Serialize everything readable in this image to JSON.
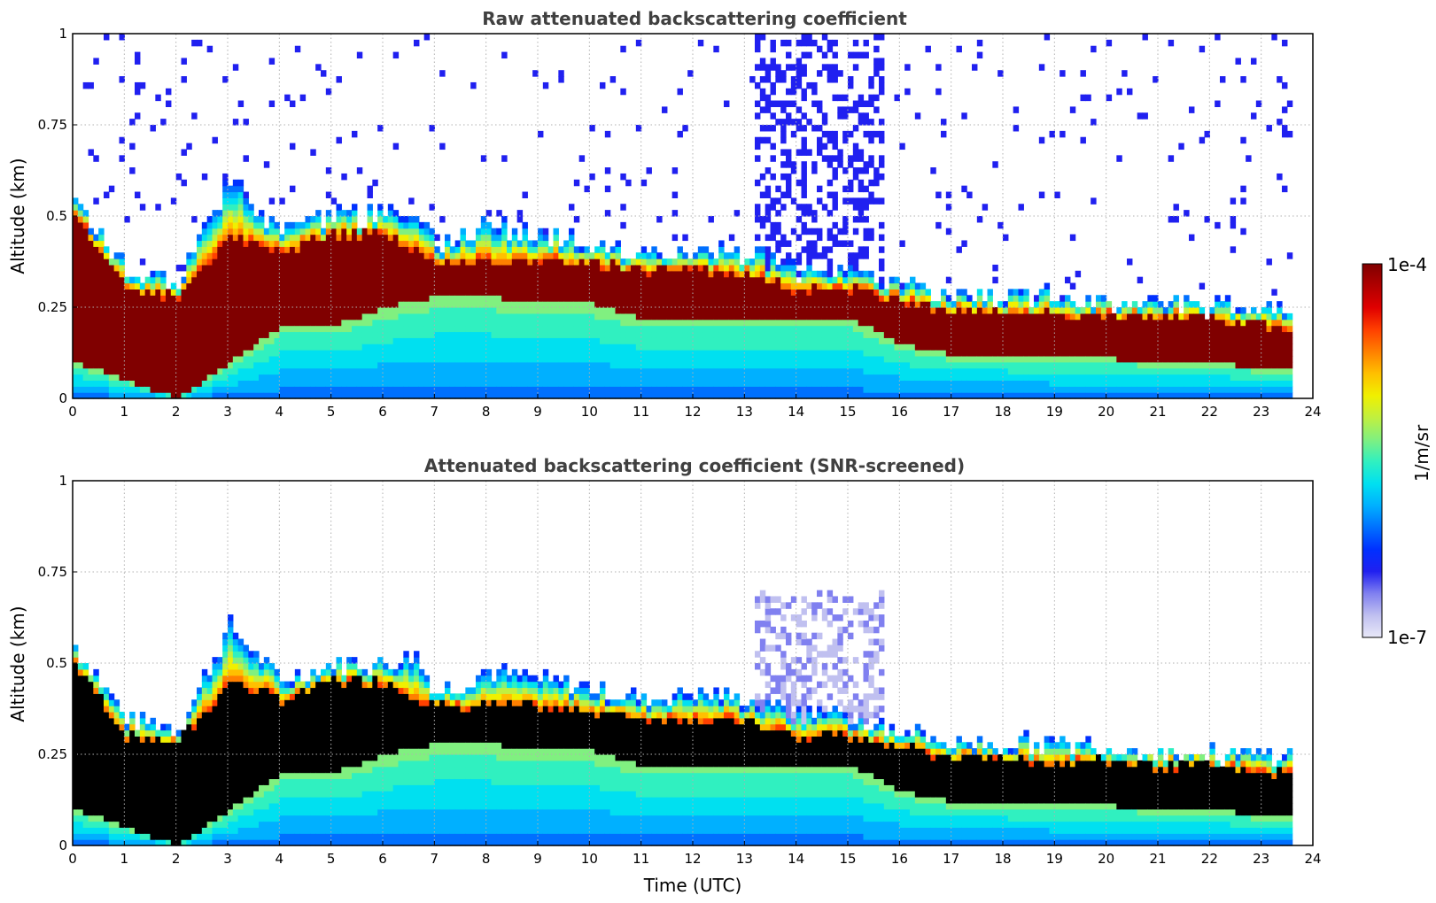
{
  "chart_data": [
    {
      "type": "heatmap",
      "title": "Raw attenuated backscattering coefficient",
      "xlabel": "",
      "ylabel": "Altitude (km)",
      "xlim": [
        0,
        24
      ],
      "ylim": [
        0,
        1
      ],
      "xticks": [
        "0",
        "1",
        "2",
        "3",
        "4",
        "5",
        "6",
        "7",
        "8",
        "9",
        "10",
        "11",
        "12",
        "13",
        "14",
        "15",
        "16",
        "17",
        "18",
        "19",
        "20",
        "21",
        "22",
        "23",
        "24"
      ],
      "yticks": [
        "0",
        "0.25",
        "0.5",
        "0.75",
        "1"
      ],
      "grid": true,
      "data_end_time": 23.6,
      "features": {
        "boundary_layer_top_km": [
          [
            0,
            0.55
          ],
          [
            1,
            0.35
          ],
          [
            2,
            0.32
          ],
          [
            3,
            0.6
          ],
          [
            4,
            0.45
          ],
          [
            5,
            0.5
          ],
          [
            6,
            0.5
          ],
          [
            6.6,
            0.52
          ],
          [
            7,
            0.42
          ],
          [
            8,
            0.48
          ],
          [
            9,
            0.45
          ],
          [
            10,
            0.43
          ],
          [
            11,
            0.4
          ],
          [
            12,
            0.42
          ],
          [
            13,
            0.4
          ],
          [
            14,
            0.35
          ],
          [
            15,
            0.35
          ],
          [
            16,
            0.32
          ],
          [
            17,
            0.28
          ],
          [
            18,
            0.28
          ],
          [
            19,
            0.28
          ],
          [
            20,
            0.27
          ],
          [
            21,
            0.26
          ],
          [
            22,
            0.25
          ],
          [
            23,
            0.25
          ],
          [
            23.6,
            0.25
          ]
        ],
        "saturated_layer_km": [
          [
            0,
            0.1,
            0.5
          ],
          [
            1,
            0.05,
            0.3
          ],
          [
            2,
            0.0,
            0.28
          ],
          [
            3,
            0.1,
            0.45
          ],
          [
            4,
            0.2,
            0.4
          ],
          [
            5,
            0.2,
            0.45
          ],
          [
            6,
            0.25,
            0.45
          ],
          [
            7,
            0.28,
            0.38
          ],
          [
            8,
            0.28,
            0.38
          ],
          [
            9,
            0.26,
            0.38
          ],
          [
            10,
            0.26,
            0.37
          ],
          [
            11,
            0.22,
            0.35
          ],
          [
            12,
            0.22,
            0.35
          ],
          [
            13,
            0.22,
            0.34
          ],
          [
            14,
            0.22,
            0.3
          ],
          [
            15,
            0.22,
            0.3
          ],
          [
            16,
            0.15,
            0.27
          ],
          [
            17,
            0.12,
            0.24
          ],
          [
            18,
            0.12,
            0.24
          ],
          [
            19,
            0.11,
            0.23
          ],
          [
            20,
            0.11,
            0.23
          ],
          [
            21,
            0.1,
            0.22
          ],
          [
            22,
            0.1,
            0.22
          ],
          [
            23,
            0.08,
            0.2
          ],
          [
            23.6,
            0.08,
            0.2
          ]
        ],
        "precip_noise_interval_utc": [
          13.2,
          15.7
        ]
      }
    },
    {
      "type": "heatmap",
      "title": "Attenuated backscattering coefficient (SNR-screened)",
      "xlabel": "Time (UTC)",
      "ylabel": "Altitude (km)",
      "xlim": [
        0,
        24
      ],
      "ylim": [
        0,
        1
      ],
      "xticks": [
        "0",
        "1",
        "2",
        "3",
        "4",
        "5",
        "6",
        "7",
        "8",
        "9",
        "10",
        "11",
        "12",
        "13",
        "14",
        "15",
        "16",
        "17",
        "18",
        "19",
        "20",
        "21",
        "22",
        "23",
        "24"
      ],
      "yticks": [
        "0",
        "0.25",
        "0.5",
        "0.75",
        "1"
      ],
      "grid": true,
      "data_end_time": 23.6
    }
  ],
  "colorbar": {
    "label": "1/m/sr",
    "max_label": "1e-4",
    "min_label": "1e-7",
    "colors": [
      "#e8e8f8",
      "#c0c0f0",
      "#8080f0",
      "#2020f0",
      "#0030ff",
      "#0070ff",
      "#00b0ff",
      "#00e0f0",
      "#30f0c0",
      "#80f080",
      "#c0f040",
      "#f0f000",
      "#ffc000",
      "#ff8000",
      "#ff4000",
      "#e00000",
      "#b00000",
      "#800000"
    ]
  }
}
